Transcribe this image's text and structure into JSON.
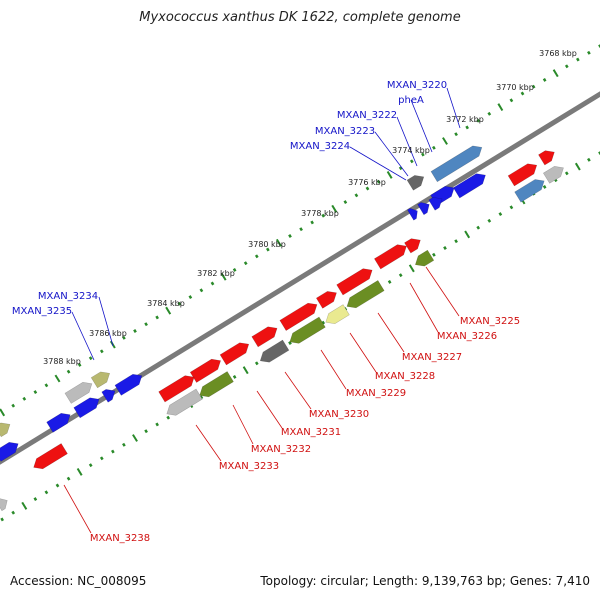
{
  "title": "Myxococcus xanthus DK 1622, complete genome",
  "footer": {
    "accession": "Accession: NC_008095",
    "genome_info": "Topology: circular; Length: 9,139,763 bp; Genes: 7,410"
  },
  "colors": {
    "forward_label": "#1414c8",
    "reverse_label": "#d01010",
    "backbone": "#7a7a7a",
    "tick": "#2a8a2a",
    "red": "#ee1111",
    "blue": "#1a1ae6",
    "steelblue": "#4f86c0",
    "olive": "#6b8e23",
    "khaki": "#b8b870",
    "lightyellow": "#eaea90",
    "gray": "#666666",
    "lightgray": "#bbbbbb"
  },
  "tick_labels": [
    "3768 kbp",
    "3770 kbp",
    "3772 kbp",
    "3774 kbp",
    "3776 kbp",
    "3778 kbp",
    "3780 kbp",
    "3782 kbp",
    "3784 kbp",
    "3786 kbp",
    "3788 kbp"
  ],
  "forward_labels": [
    "MXAN_3220",
    "pheA",
    "MXAN_3222",
    "MXAN_3223",
    "MXAN_3224",
    "MXAN_3234",
    "MXAN_3235"
  ],
  "reverse_labels": [
    "MXAN_3225",
    "MXAN_3226",
    "MXAN_3227",
    "MXAN_3228",
    "MXAN_3229",
    "MXAN_3230",
    "MXAN_3231",
    "MXAN_3232",
    "MXAN_3233",
    "MXAN_3238"
  ]
}
